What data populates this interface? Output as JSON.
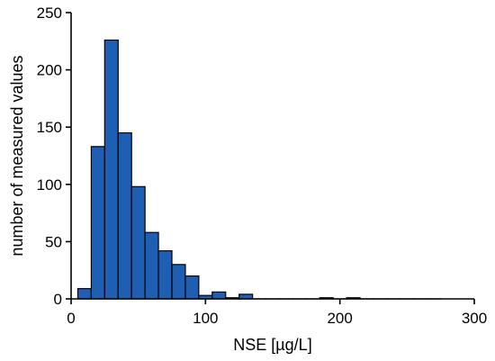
{
  "chart_data": {
    "type": "bar",
    "title": "",
    "xlabel": "NSE [µg/L]",
    "ylabel": "number of measured values",
    "xlim": [
      0,
      300
    ],
    "ylim": [
      0,
      250
    ],
    "x_ticks": [
      0,
      100,
      200,
      300
    ],
    "y_ticks": [
      0,
      50,
      100,
      150,
      200,
      250
    ],
    "bin_width": 10,
    "bin_centers": [
      10,
      20,
      30,
      40,
      50,
      60,
      70,
      80,
      90,
      100,
      110,
      120,
      130,
      140,
      150,
      160,
      170,
      180,
      190,
      200,
      210,
      220,
      230,
      240,
      250,
      260,
      270
    ],
    "values": [
      9,
      133,
      226,
      145,
      98,
      58,
      42,
      30,
      20,
      3,
      6,
      1,
      4,
      0,
      0,
      0,
      0,
      0,
      1,
      0,
      1,
      0,
      0,
      0,
      0,
      0,
      0
    ],
    "grid": false,
    "legend": "none",
    "colors": {
      "bar_fill": "#1f5fb3",
      "bar_stroke": "#000000",
      "axis": "#000000"
    }
  }
}
